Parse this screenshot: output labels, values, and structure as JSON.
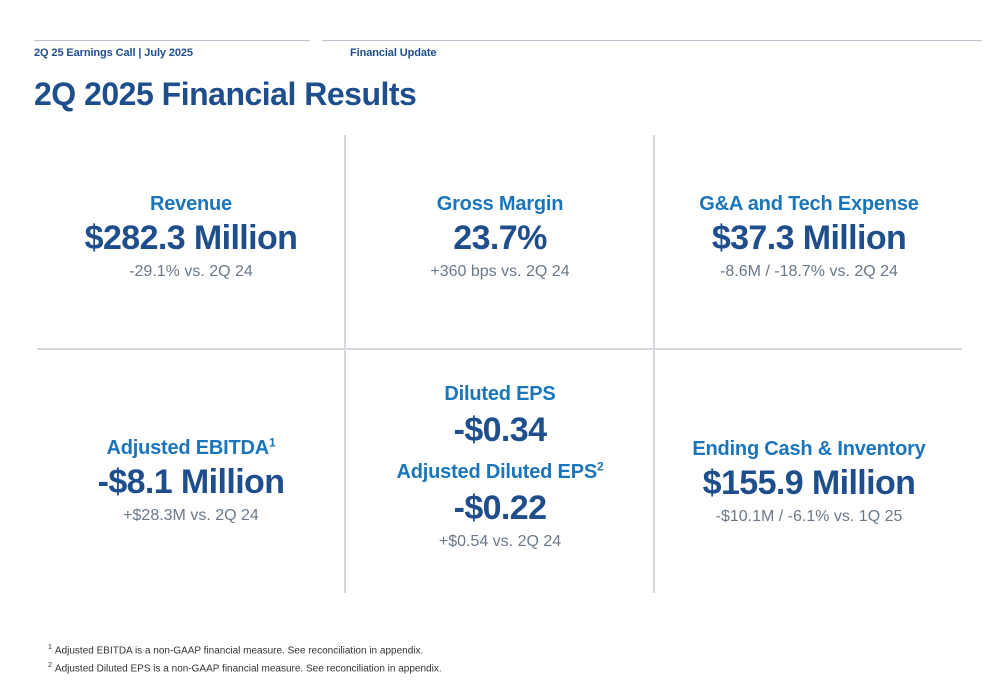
{
  "header": {
    "left": "2Q 25 Earnings Call | July 2025",
    "right": "Financial Update"
  },
  "title": "2Q 2025 Financial Results",
  "metrics": {
    "revenue": {
      "label": "Revenue",
      "value": "$282.3 Million",
      "compare": "-29.1% vs. 2Q 24"
    },
    "gross_margin": {
      "label": "Gross Margin",
      "value": "23.7%",
      "compare": "+360 bps vs. 2Q 24"
    },
    "ga_tech": {
      "label": "G&A and Tech Expense",
      "value": "$37.3 Million",
      "compare": "-8.6M / -18.7% vs. 2Q 24"
    },
    "adj_ebitda": {
      "label": "Adjusted EBITDA",
      "sup": "1",
      "value": "-$8.1 Million",
      "compare": "+$28.3M vs. 2Q 24"
    },
    "diluted_eps": {
      "label": "Diluted EPS",
      "value": "-$0.34"
    },
    "adj_diluted_eps": {
      "label": "Adjusted Diluted EPS",
      "sup": "2",
      "value": "-$0.22",
      "compare": "+$0.54 vs. 2Q 24"
    },
    "ending_cash": {
      "label": "Ending Cash & Inventory",
      "value": "$155.9 Million",
      "compare": "-$10.1M / -6.1% vs. 1Q 25"
    }
  },
  "footnotes": [
    {
      "num": "1",
      "text": "Adjusted EBITDA is a non-GAAP financial measure. See reconciliation in appendix."
    },
    {
      "num": "2",
      "text": "Adjusted Diluted EPS is a non-GAAP financial measure. See reconciliation in appendix."
    }
  ]
}
